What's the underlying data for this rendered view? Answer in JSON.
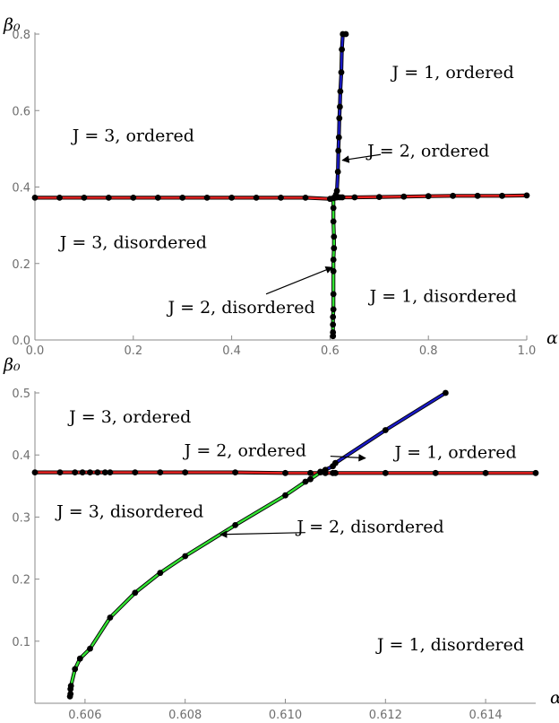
{
  "chart_data": [
    {
      "type": "line",
      "xlabel": "α",
      "ylabel": "β₀",
      "xlim": [
        0,
        1.0
      ],
      "ylim": [
        0,
        0.8
      ],
      "x_ticks": [
        "0.0",
        "0.2",
        "0.4",
        "0.6",
        "0.8",
        "1.0"
      ],
      "y_ticks": [
        "0.0",
        "0.2",
        "0.4",
        "0.6",
        "0.8"
      ],
      "x_tick_values": [
        0,
        0.2,
        0.4,
        0.6,
        0.8,
        1.0
      ],
      "y_tick_values": [
        0,
        0.2,
        0.4,
        0.6,
        0.8
      ],
      "grid": false,
      "series": [
        {
          "color": "#e8201f",
          "points": [
            [
              0,
              0.372
            ],
            [
              0.05,
              0.372
            ],
            [
              0.1,
              0.372
            ],
            [
              0.15,
              0.372
            ],
            [
              0.2,
              0.372
            ],
            [
              0.25,
              0.372
            ],
            [
              0.3,
              0.372
            ],
            [
              0.35,
              0.372
            ],
            [
              0.4,
              0.372
            ],
            [
              0.45,
              0.372
            ],
            [
              0.5,
              0.372
            ],
            [
              0.55,
              0.372
            ],
            [
              0.6,
              0.369
            ],
            [
              0.607,
              0.371
            ],
            [
              0.61,
              0.372
            ],
            [
              0.612,
              0.373
            ],
            [
              0.615,
              0.373
            ],
            [
              0.62,
              0.373
            ],
            [
              0.625,
              0.373
            ],
            [
              0.65,
              0.373
            ],
            [
              0.7,
              0.374
            ],
            [
              0.75,
              0.375
            ],
            [
              0.8,
              0.376
            ],
            [
              0.85,
              0.377
            ],
            [
              0.9,
              0.377
            ],
            [
              0.95,
              0.377
            ],
            [
              1.0,
              0.378
            ]
          ]
        },
        {
          "color": "#1a1ac8",
          "points": [
            [
              0.61,
              0.374
            ],
            [
              0.612,
              0.38
            ],
            [
              0.614,
              0.39
            ],
            [
              0.616,
              0.44
            ],
            [
              0.617,
              0.495
            ],
            [
              0.618,
              0.53
            ],
            [
              0.619,
              0.58
            ],
            [
              0.62,
              0.61
            ],
            [
              0.621,
              0.65
            ],
            [
              0.623,
              0.7
            ],
            [
              0.624,
              0.76
            ],
            [
              0.626,
              0.8
            ],
            [
              0.632,
              0.8
            ]
          ]
        },
        {
          "color": "#33e333",
          "points": [
            [
              0.607,
              0.371
            ],
            [
              0.607,
              0.345
            ],
            [
              0.607,
              0.31
            ],
            [
              0.608,
              0.27
            ],
            [
              0.608,
              0.24
            ],
            [
              0.607,
              0.21
            ],
            [
              0.607,
              0.18
            ],
            [
              0.607,
              0.12
            ],
            [
              0.607,
              0.08
            ],
            [
              0.606,
              0.06
            ],
            [
              0.606,
              0.04
            ],
            [
              0.606,
              0.02
            ],
            [
              0.606,
              0.01
            ]
          ]
        }
      ],
      "region_labels": [
        {
          "text": "J = 1, ordered",
          "at": [
            0.85,
            0.685
          ]
        },
        {
          "text": "J = 3, ordered",
          "at": [
            0.2,
            0.52
          ]
        },
        {
          "text": "J = 2, ordered",
          "at": [
            0.8,
            0.48
          ]
        },
        {
          "text": "J = 3, disordered",
          "at": [
            0.2,
            0.24
          ]
        },
        {
          "text": "J = 1, disordered",
          "at": [
            0.83,
            0.1
          ]
        },
        {
          "text": "J = 2, disordered",
          "at": [
            0.42,
            0.07
          ]
        }
      ],
      "annotations": [
        {
          "from": [
            0.703,
            0.485
          ],
          "to": [
            0.625,
            0.47
          ]
        },
        {
          "from": [
            0.47,
            0.12
          ],
          "to": [
            0.605,
            0.19
          ]
        }
      ]
    },
    {
      "type": "line",
      "xlabel": "α",
      "ylabel": "β₀",
      "xlim": [
        0.605,
        0.615
      ],
      "ylim": [
        0.0,
        0.5
      ],
      "x_ticks": [
        "0.606",
        "0.608",
        "0.610",
        "0.612",
        "0.614"
      ],
      "y_ticks": [
        "0.1",
        "0.2",
        "0.3",
        "0.4",
        "0.5"
      ],
      "x_tick_values": [
        0.606,
        0.608,
        0.61,
        0.612,
        0.614
      ],
      "y_tick_values": [
        0.1,
        0.2,
        0.3,
        0.4,
        0.5
      ],
      "grid": false,
      "series": [
        {
          "color": "#e8201f",
          "points": [
            [
              0.605,
              0.372
            ],
            [
              0.6055,
              0.372
            ],
            [
              0.6058,
              0.372
            ],
            [
              0.60595,
              0.372
            ],
            [
              0.6061,
              0.372
            ],
            [
              0.60625,
              0.372
            ],
            [
              0.6064,
              0.372
            ],
            [
              0.6065,
              0.372
            ],
            [
              0.607,
              0.372
            ],
            [
              0.6075,
              0.372
            ],
            [
              0.608,
              0.372
            ],
            [
              0.609,
              0.372
            ],
            [
              0.61,
              0.371
            ],
            [
              0.6105,
              0.371
            ],
            [
              0.6108,
              0.371
            ],
            [
              0.61095,
              0.371
            ],
            [
              0.611,
              0.371
            ],
            [
              0.612,
              0.371
            ],
            [
              0.613,
              0.371
            ],
            [
              0.614,
              0.371
            ],
            [
              0.615,
              0.371
            ]
          ]
        },
        {
          "color": "#1a1ac8",
          "points": [
            [
              0.6107,
              0.373
            ],
            [
              0.6108,
              0.376
            ],
            [
              0.61095,
              0.382
            ],
            [
              0.611,
              0.387
            ],
            [
              0.612,
              0.44
            ],
            [
              0.6132,
              0.5
            ]
          ]
        },
        {
          "color": "#33e333",
          "points": [
            [
              0.6107,
              0.372
            ],
            [
              0.6105,
              0.361
            ],
            [
              0.6104,
              0.357
            ],
            [
              0.61,
              0.335
            ],
            [
              0.609,
              0.287
            ],
            [
              0.608,
              0.237
            ],
            [
              0.6075,
              0.21
            ],
            [
              0.607,
              0.178
            ],
            [
              0.6065,
              0.138
            ],
            [
              0.6061,
              0.088
            ],
            [
              0.6059,
              0.072
            ],
            [
              0.6058,
              0.055
            ],
            [
              0.60572,
              0.028
            ],
            [
              0.60571,
              0.023
            ],
            [
              0.60571,
              0.015
            ],
            [
              0.6057,
              0.011
            ]
          ]
        }
      ],
      "region_labels": [
        {
          "text": "J = 3, ordered",
          "at": [
            0.6069,
            0.452
          ]
        },
        {
          "text": "J = 1, ordered",
          "at": [
            0.6134,
            0.395
          ]
        },
        {
          "text": "J = 2, ordered",
          "at": [
            0.6092,
            0.398
          ]
        },
        {
          "text": "J = 3, disordered",
          "at": [
            0.6069,
            0.3
          ]
        },
        {
          "text": "J = 2, disordered",
          "at": [
            0.6117,
            0.275
          ]
        },
        {
          "text": "J = 1, disordered",
          "at": [
            0.6133,
            0.085
          ]
        }
      ],
      "annotations": [
        {
          "from": [
            0.6109,
            0.398
          ],
          "to": [
            0.6116,
            0.395
          ]
        },
        {
          "from": [
            0.6104,
            0.275
          ],
          "to": [
            0.6087,
            0.272
          ]
        }
      ]
    }
  ]
}
